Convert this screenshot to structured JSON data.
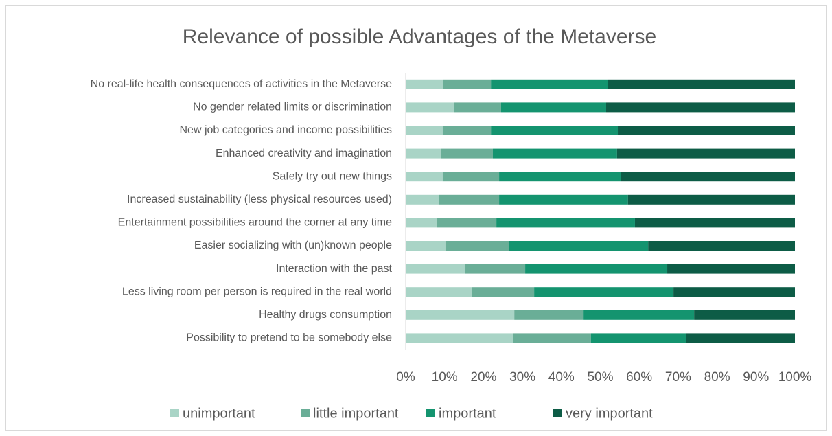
{
  "chart_data": {
    "type": "stacked_bar_horizontal",
    "title": "Relevance of possible Advantages of the Metaverse",
    "categories": [
      "No real-life health consequences of activities in the Metaverse",
      "No gender related limits or discrimination",
      "New job categories and income possibilities",
      "Enhanced creativity and imagination",
      "Safely try out new things",
      "Increased sustainability (less physical resources used)",
      "Entertainment possibilities around the corner at any time",
      "Easier socializing with (un)known people",
      "Interaction with the past",
      "Less living room per person is required in the real world",
      "Healthy drugs consumption",
      "Possibility to pretend to be somebody else"
    ],
    "series": [
      {
        "name": "unimportant",
        "color": "#a9d4c6",
        "values": [
          9.7,
          12.5,
          9.5,
          9.0,
          9.5,
          8.5,
          8.1,
          10.2,
          15.3,
          17.1,
          27.9,
          27.5
        ]
      },
      {
        "name": "little important",
        "color": "#6aae97",
        "values": [
          12.2,
          12.0,
          12.4,
          13.4,
          14.5,
          15.5,
          15.2,
          16.4,
          15.4,
          15.9,
          17.8,
          20.1
        ]
      },
      {
        "name": "important",
        "color": "#14946f",
        "values": [
          30.0,
          27.0,
          32.6,
          31.9,
          31.2,
          33.1,
          35.6,
          35.7,
          36.5,
          35.8,
          28.4,
          24.4
        ]
      },
      {
        "name": "very important",
        "color": "#0d5c46",
        "values": [
          48.1,
          48.5,
          45.5,
          45.7,
          44.8,
          42.9,
          41.1,
          37.7,
          32.8,
          31.2,
          25.9,
          28.0
        ]
      }
    ],
    "xlim": [
      0,
      100
    ],
    "xticks": [
      {
        "value": 0,
        "label": "0%"
      },
      {
        "value": 10,
        "label": "10%"
      },
      {
        "value": 20,
        "label": "20%"
      },
      {
        "value": 30,
        "label": "30%"
      },
      {
        "value": 40,
        "label": "40%"
      },
      {
        "value": 50,
        "label": "50%"
      },
      {
        "value": 60,
        "label": "60%"
      },
      {
        "value": 70,
        "label": "70%"
      },
      {
        "value": 80,
        "label": "80%"
      },
      {
        "value": 90,
        "label": "90%"
      },
      {
        "value": 100,
        "label": "100%"
      }
    ],
    "legend": "bottom"
  }
}
